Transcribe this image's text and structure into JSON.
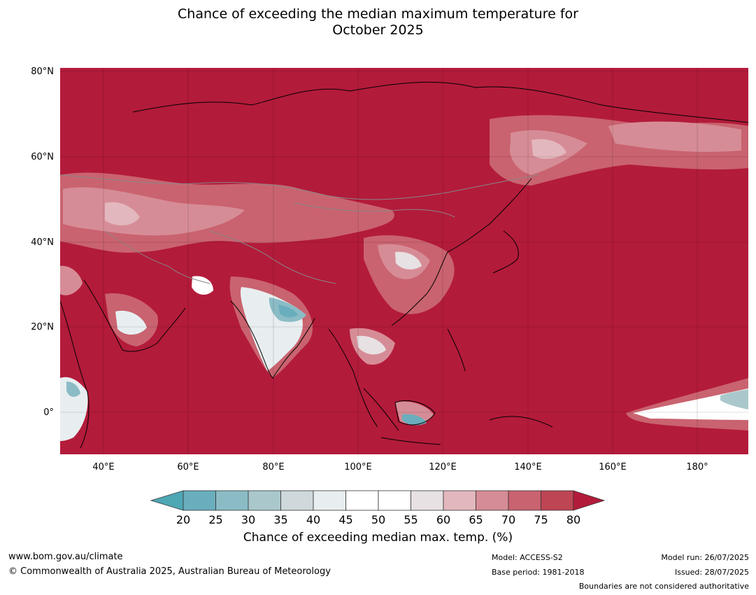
{
  "title_line1": "Chance of exceeding the median maximum temperature for",
  "title_line2": "October 2025",
  "map": {
    "lat_labels": [
      "80°N",
      "60°N",
      "40°N",
      "20°N",
      "0°"
    ],
    "lon_labels": [
      "40°E",
      "60°E",
      "80°E",
      "100°E",
      "120°E",
      "140°E",
      "160°E",
      "180°"
    ],
    "background_color": "#b31b3a",
    "region": "Asia"
  },
  "colorbar": {
    "ticks": [
      "20",
      "25",
      "30",
      "35",
      "40",
      "45",
      "50",
      "55",
      "60",
      "65",
      "70",
      "75",
      "80"
    ],
    "colors": [
      "#4ea7b4",
      "#6aaebd",
      "#8bbcc6",
      "#aac8cc",
      "#cfd9dc",
      "#e8eef0",
      "#ffffff",
      "#ffffff",
      "#e7e1e3",
      "#e2b7bd",
      "#d68c96",
      "#c9636f",
      "#be4553",
      "#b31b3a"
    ],
    "title": "Chance of exceeding median max. temp. (%)"
  },
  "footer": {
    "url": "www.bom.gov.au/climate",
    "copyright": "© Commonwealth of Australia 2025, Australian Bureau of Meteorology",
    "model": "Model: ACCESS-S2",
    "base_period": "Base period: 1981-2018",
    "model_run": "Model run: 26/07/2025",
    "issued": "Issued: 28/07/2025",
    "disclaimer": "Boundaries are not considered authoritative"
  }
}
